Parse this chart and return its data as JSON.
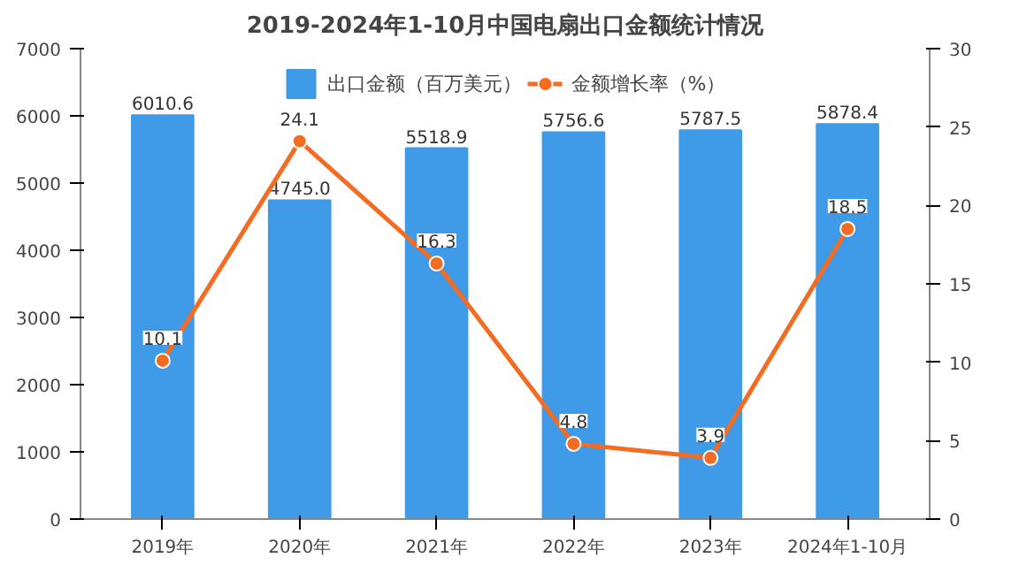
{
  "chart_data": {
    "type": "bar",
    "title": "2019-2024年1-10月中国电扇出口金额统计情况",
    "categories": [
      "2019年",
      "2020年",
      "2021年",
      "2022年",
      "2023年",
      "2024年1-10月"
    ],
    "series": [
      {
        "name": "出口金额（百万美元）",
        "color": "#3f9be8",
        "values": [
          6010.6,
          4745,
          5518.9,
          5756.6,
          5787.5,
          5878.4
        ],
        "value_labels": [
          "6010.6",
          "4745.0",
          "5518.9",
          "5756.6",
          "5787.5",
          "5878.4"
        ]
      },
      {
        "name": "金额增长率（%）",
        "type": "line",
        "axis": "y2",
        "color": "#f36c21",
        "values": [
          10.1,
          24.1,
          16.3,
          4.8,
          3.9,
          18.5
        ],
        "value_labels": [
          "10.1",
          "24.1",
          "16.3",
          "4.8",
          "3.9",
          "18.5"
        ]
      }
    ],
    "ylim": [
      0,
      7000
    ],
    "yticks": [
      0,
      1000,
      2000,
      3000,
      4000,
      5000,
      6000,
      7000
    ],
    "y2lim": [
      0,
      30
    ],
    "y2ticks": [
      0,
      5,
      10,
      15,
      20,
      25,
      30
    ],
    "legend": "top",
    "marker": "circle",
    "line_style": "solid"
  }
}
